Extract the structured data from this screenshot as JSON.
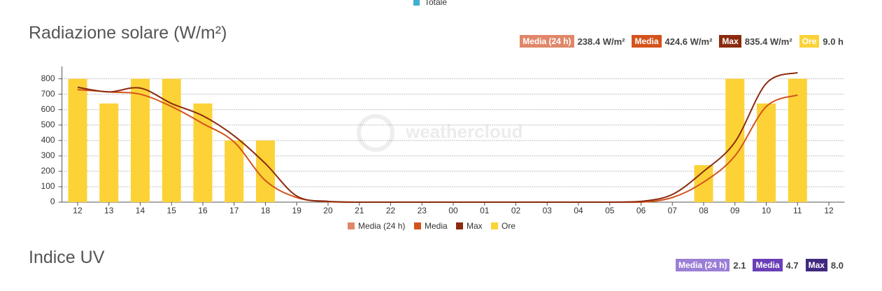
{
  "top_legend": {
    "label": "Totale",
    "color": "#3eb0d5"
  },
  "chart_data": {
    "type": "bar",
    "title": "Radiazione solare (W/m²)",
    "badges": [
      {
        "label": "Media (24 h)",
        "value": "238.4 W/m²",
        "color": "#e0876a"
      },
      {
        "label": "Media",
        "value": "424.6 W/m²",
        "color": "#d4531c"
      },
      {
        "label": "Max",
        "value": "835.4 W/m²",
        "color": "#8b2a0e"
      },
      {
        "label": "Ore",
        "value": "9.0 h",
        "color": "#fcd237"
      }
    ],
    "watermark": "weathercloud",
    "categories": [
      "12",
      "13",
      "14",
      "15",
      "16",
      "17",
      "18",
      "19",
      "20",
      "21",
      "22",
      "23",
      "00",
      "01",
      "02",
      "03",
      "04",
      "05",
      "06",
      "07",
      "08",
      "09",
      "10",
      "11",
      "12"
    ],
    "series": [
      {
        "name": "Media (24 h)",
        "type": "line",
        "color": "#e0876a",
        "values": [
          null,
          null,
          null,
          null,
          null,
          null,
          null,
          null,
          null,
          null,
          null,
          null,
          null,
          null,
          null,
          null,
          null,
          null,
          null,
          null,
          null,
          null,
          null,
          null,
          null
        ]
      },
      {
        "name": "Media",
        "type": "line",
        "color": "#d4531c",
        "values": [
          730,
          715,
          700,
          620,
          510,
          390,
          140,
          30,
          3,
          0,
          0,
          0,
          0,
          0,
          0,
          0,
          0,
          0,
          0,
          30,
          130,
          300,
          620,
          695,
          null
        ]
      },
      {
        "name": "Max",
        "type": "line",
        "color": "#8b2a0e",
        "values": [
          745,
          715,
          740,
          640,
          560,
          430,
          250,
          40,
          5,
          0,
          0,
          0,
          0,
          0,
          0,
          0,
          0,
          0,
          5,
          50,
          200,
          390,
          770,
          840,
          null
        ]
      },
      {
        "name": "Ore",
        "type": "bar",
        "color": "#fcd237",
        "values": [
          800,
          640,
          800,
          800,
          640,
          400,
          400,
          0,
          0,
          0,
          0,
          0,
          0,
          0,
          0,
          0,
          0,
          0,
          0,
          0,
          240,
          800,
          640,
          800,
          null
        ]
      }
    ],
    "ylim": [
      0,
      880
    ],
    "yticks": [
      0,
      100,
      200,
      300,
      400,
      500,
      600,
      700,
      800
    ],
    "grid": true
  },
  "uv": {
    "title": "Indice UV",
    "badges": [
      {
        "label": "Media (24 h)",
        "value": "2.1",
        "color": "#9b7fd6"
      },
      {
        "label": "Media",
        "value": "4.7",
        "color": "#6a3fb8"
      },
      {
        "label": "Max",
        "value": "8.0",
        "color": "#3f2a80"
      }
    ]
  }
}
